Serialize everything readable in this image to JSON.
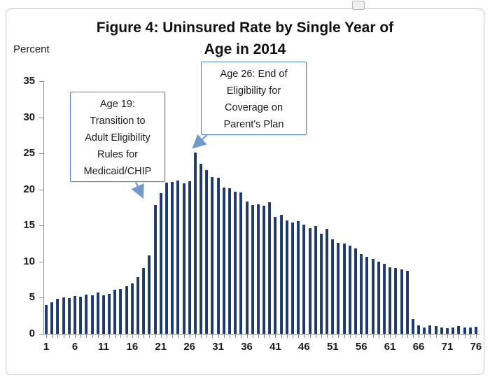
{
  "figure": {
    "title_line1": "Figure 4: Uninsured Rate by Single Year of",
    "title_line2": "Age in 2014",
    "y_axis_label": "Percent"
  },
  "annotations": {
    "age19": {
      "lines": [
        "Age 19:",
        "Transition to",
        "Adult Eligibility",
        "Rules for",
        "Medicaid/CHIP"
      ]
    },
    "age26": {
      "lines": [
        "Age 26: End of",
        "Eligibility for",
        "Coverage on",
        "Parent's Plan"
      ]
    }
  },
  "colors": {
    "bar": "#1f3864",
    "annotation_border": "#4f81bd",
    "arrow": "#7199cc",
    "axis": "#8c8c8c"
  },
  "chart_data": {
    "type": "bar",
    "title": "Figure 4: Uninsured Rate by Single Year of Age in 2014",
    "xlabel": "",
    "ylabel": "Percent",
    "ylim": [
      0,
      35
    ],
    "yticks": [
      0,
      5,
      10,
      15,
      20,
      25,
      30,
      35
    ],
    "xtick_labels": [
      "1",
      "6",
      "11",
      "16",
      "21",
      "26",
      "31",
      "36",
      "41",
      "46",
      "51",
      "56",
      "61",
      "66",
      "71",
      "76"
    ],
    "x_start_age": 1,
    "x": [
      1,
      2,
      3,
      4,
      5,
      6,
      7,
      8,
      9,
      10,
      11,
      12,
      13,
      14,
      15,
      16,
      17,
      18,
      19,
      20,
      21,
      22,
      23,
      24,
      25,
      26,
      27,
      28,
      29,
      30,
      31,
      32,
      33,
      34,
      35,
      36,
      37,
      38,
      39,
      40,
      41,
      42,
      43,
      44,
      45,
      46,
      47,
      48,
      49,
      50,
      51,
      52,
      53,
      54,
      55,
      56,
      57,
      58,
      59,
      60,
      61,
      62,
      63,
      64,
      65,
      66,
      67,
      68,
      69,
      70,
      71,
      72,
      73,
      74,
      75,
      76
    ],
    "values": [
      4.0,
      4.4,
      4.8,
      5.0,
      4.9,
      5.2,
      5.1,
      5.4,
      5.3,
      5.7,
      5.3,
      5.5,
      6.1,
      6.2,
      6.6,
      7.0,
      7.9,
      9.1,
      10.9,
      17.8,
      19.5,
      20.9,
      21.0,
      21.2,
      20.8,
      21.1,
      25.1,
      23.6,
      22.7,
      21.7,
      21.6,
      20.3,
      20.2,
      19.7,
      19.6,
      18.3,
      17.8,
      17.9,
      17.7,
      18.2,
      16.2,
      16.5,
      15.7,
      15.4,
      15.6,
      15.1,
      14.6,
      14.9,
      13.9,
      14.5,
      13.1,
      12.6,
      12.5,
      12.2,
      11.8,
      11.1,
      10.7,
      10.4,
      10.0,
      9.7,
      9.2,
      9.1,
      8.9,
      8.7,
      2.0,
      1.2,
      0.9,
      1.2,
      1.1,
      0.9,
      0.8,
      0.9,
      1.1,
      0.9,
      0.9,
      1.0
    ],
    "annotations_text": [
      "Age 19: Transition to Adult Eligibility Rules for Medicaid/CHIP",
      "Age 26: End of Eligibility for Coverage on Parent's Plan"
    ],
    "legend": "none",
    "grid": "off"
  }
}
